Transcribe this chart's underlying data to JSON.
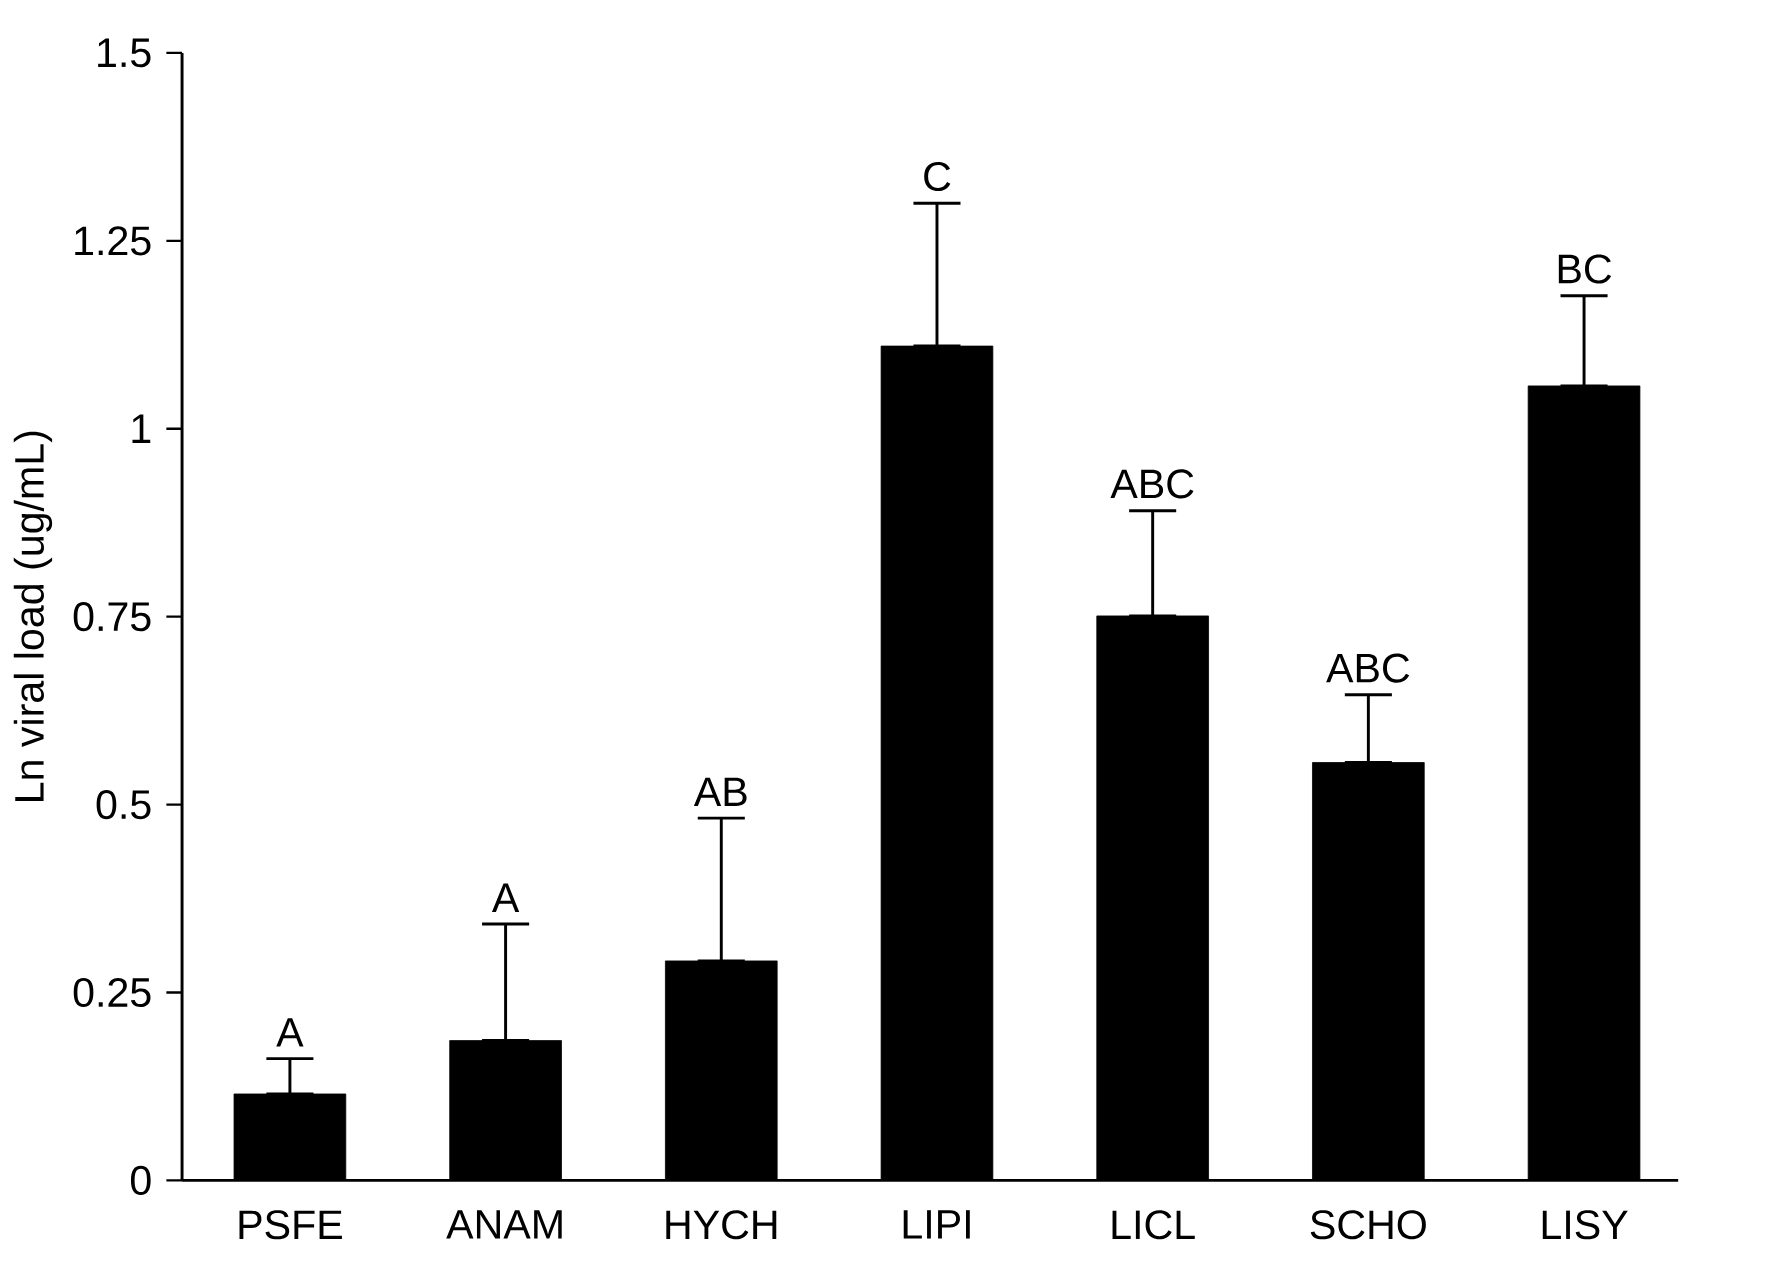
{
  "chart_data": {
    "type": "bar",
    "ylabel": "Ln viral load (ug/mL)",
    "categories": [
      "PSFE",
      "ANAM",
      "HYCH",
      "LIPI",
      "LICL",
      "SCHO",
      "LISY"
    ],
    "values": [
      0.115,
      0.186,
      0.292,
      1.11,
      0.751,
      0.556,
      1.057
    ],
    "errors": [
      [
        0.115,
        0.162
      ],
      [
        0.186,
        0.341
      ],
      [
        0.292,
        0.482
      ],
      [
        1.11,
        1.3
      ],
      [
        0.751,
        0.891
      ],
      [
        0.556,
        0.646
      ],
      [
        1.057,
        1.177
      ]
    ],
    "color": "#000000",
    "ylim": [
      0,
      1.5
    ],
    "yticks": [
      0,
      0.25,
      0.5,
      0.75,
      1,
      1.25,
      1.5
    ],
    "annotations": [
      "A",
      "A",
      "AB",
      "C",
      "ABC",
      "ABC",
      "BC"
    ]
  }
}
